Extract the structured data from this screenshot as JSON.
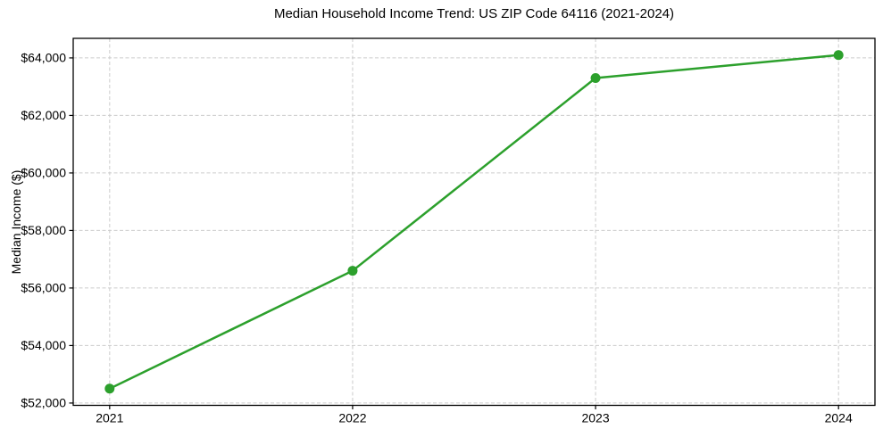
{
  "chart_data": {
    "type": "line",
    "title": "Median Household Income Trend: US ZIP Code 64116 (2021-2024)",
    "xlabel": "",
    "ylabel": "Median Income ($)",
    "x": [
      2021,
      2022,
      2023,
      2024
    ],
    "series": [
      {
        "name": "Median Household Income",
        "values": [
          52500,
          56600,
          63300,
          64100
        ]
      }
    ],
    "xticks": {
      "values": [
        2021,
        2022,
        2023,
        2024
      ],
      "labels": [
        "2021",
        "2022",
        "2023",
        "2024"
      ]
    },
    "yticks": {
      "values": [
        52000,
        54000,
        56000,
        58000,
        60000,
        62000,
        64000
      ],
      "labels": [
        "$52,000",
        "$54,000",
        "$56,000",
        "$58,000",
        "$60,000",
        "$62,000",
        "$64,000"
      ]
    },
    "xlim": [
      2020.85,
      2024.15
    ],
    "ylim": [
      51920,
      64680
    ],
    "grid": true,
    "grid_style": "dashed",
    "legend": null,
    "colors": {
      "line": "#2ca02c",
      "marker": "#2ca02c",
      "grid": "#cccccc",
      "spine": "#000000",
      "text": "#000000",
      "background": "#ffffff"
    }
  }
}
